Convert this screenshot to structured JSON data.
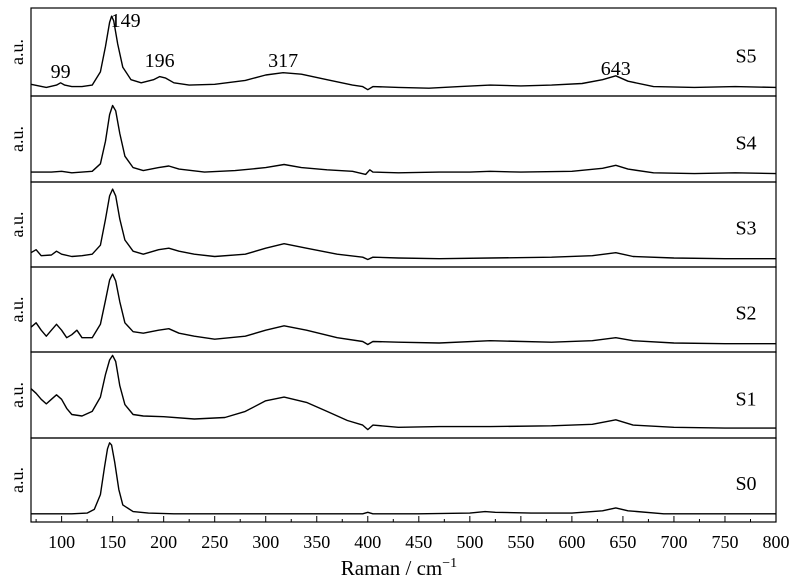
{
  "chart_data": {
    "type": "line",
    "layout": "stacked-panels",
    "xlabel": "Raman / cm",
    "xlabel_superscript": "−1",
    "ylabel": "a.u.",
    "xlim": [
      70,
      800
    ],
    "xticks": [
      100,
      150,
      200,
      250,
      300,
      350,
      400,
      450,
      500,
      550,
      600,
      650,
      700,
      750,
      800
    ],
    "grid": false,
    "line_color": "#000000",
    "peak_annotations": [
      {
        "label": "99",
        "x": 99
      },
      {
        "label": "149",
        "x": 149
      },
      {
        "label": "196",
        "x": 196
      },
      {
        "label": "317",
        "x": 317
      },
      {
        "label": "643",
        "x": 643
      }
    ],
    "series": [
      {
        "name": "S5",
        "x": [
          70,
          85,
          95,
          99,
          103,
          110,
          120,
          130,
          138,
          143,
          147,
          149,
          151,
          155,
          160,
          168,
          178,
          190,
          196,
          202,
          210,
          225,
          250,
          280,
          300,
          317,
          335,
          360,
          385,
          395,
          400,
          405,
          430,
          460,
          490,
          520,
          550,
          580,
          610,
          630,
          643,
          655,
          680,
          720,
          760,
          800
        ],
        "y": [
          0.06,
          0.02,
          0.05,
          0.08,
          0.05,
          0.03,
          0.03,
          0.05,
          0.22,
          0.55,
          0.86,
          0.94,
          0.88,
          0.58,
          0.28,
          0.12,
          0.08,
          0.12,
          0.16,
          0.14,
          0.08,
          0.05,
          0.06,
          0.11,
          0.18,
          0.21,
          0.19,
          0.12,
          0.05,
          0.03,
          -0.01,
          0.03,
          0.02,
          0.01,
          0.03,
          0.05,
          0.04,
          0.05,
          0.07,
          0.12,
          0.17,
          0.1,
          0.03,
          0.02,
          0.03,
          0.02
        ]
      },
      {
        "name": "S4",
        "x": [
          70,
          90,
          100,
          110,
          120,
          130,
          138,
          143,
          147,
          150,
          153,
          157,
          162,
          170,
          180,
          195,
          205,
          215,
          240,
          270,
          300,
          318,
          335,
          360,
          385,
          398,
          402,
          405,
          430,
          470,
          500,
          520,
          550,
          600,
          630,
          643,
          655,
          680,
          720,
          760,
          800
        ],
        "y": [
          0.04,
          0.04,
          0.05,
          0.03,
          0.04,
          0.05,
          0.15,
          0.45,
          0.8,
          0.92,
          0.85,
          0.55,
          0.25,
          0.1,
          0.06,
          0.1,
          0.12,
          0.08,
          0.04,
          0.06,
          0.1,
          0.14,
          0.1,
          0.07,
          0.05,
          0.01,
          0.07,
          0.04,
          0.03,
          0.04,
          0.04,
          0.05,
          0.04,
          0.05,
          0.09,
          0.13,
          0.08,
          0.03,
          0.02,
          0.03,
          0.02
        ]
      },
      {
        "name": "S3",
        "x": [
          70,
          75,
          80,
          90,
          95,
          100,
          110,
          120,
          130,
          138,
          143,
          147,
          150,
          153,
          157,
          162,
          170,
          180,
          195,
          205,
          215,
          230,
          250,
          280,
          300,
          318,
          340,
          370,
          395,
          400,
          405,
          430,
          470,
          520,
          580,
          620,
          643,
          660,
          700,
          750,
          800
        ],
        "y": [
          0.1,
          0.14,
          0.06,
          0.07,
          0.12,
          0.08,
          0.05,
          0.06,
          0.08,
          0.2,
          0.55,
          0.86,
          0.95,
          0.86,
          0.55,
          0.27,
          0.12,
          0.08,
          0.14,
          0.16,
          0.12,
          0.08,
          0.05,
          0.08,
          0.16,
          0.22,
          0.16,
          0.08,
          0.04,
          0.01,
          0.04,
          0.03,
          0.02,
          0.03,
          0.04,
          0.06,
          0.1,
          0.05,
          0.03,
          0.02,
          0.02
        ]
      },
      {
        "name": "S2",
        "x": [
          70,
          75,
          80,
          85,
          90,
          95,
          100,
          105,
          110,
          115,
          120,
          130,
          138,
          143,
          147,
          150,
          153,
          157,
          162,
          170,
          180,
          195,
          205,
          215,
          230,
          250,
          280,
          300,
          318,
          340,
          370,
          395,
          400,
          405,
          430,
          470,
          520,
          580,
          620,
          643,
          660,
          700,
          750,
          800
        ],
        "y": [
          0.24,
          0.3,
          0.2,
          0.12,
          0.2,
          0.28,
          0.2,
          0.1,
          0.14,
          0.2,
          0.1,
          0.1,
          0.28,
          0.6,
          0.87,
          0.95,
          0.86,
          0.58,
          0.3,
          0.18,
          0.16,
          0.2,
          0.22,
          0.16,
          0.12,
          0.08,
          0.12,
          0.2,
          0.26,
          0.2,
          0.1,
          0.05,
          0.01,
          0.05,
          0.04,
          0.03,
          0.06,
          0.04,
          0.06,
          0.1,
          0.06,
          0.03,
          0.02,
          0.02
        ]
      },
      {
        "name": "S1",
        "x": [
          70,
          75,
          80,
          85,
          90,
          95,
          100,
          105,
          110,
          120,
          130,
          138,
          143,
          147,
          150,
          153,
          157,
          162,
          170,
          180,
          200,
          230,
          260,
          280,
          300,
          318,
          340,
          360,
          380,
          395,
          400,
          405,
          430,
          470,
          520,
          580,
          620,
          643,
          660,
          700,
          750,
          800
        ],
        "y": [
          0.56,
          0.5,
          0.42,
          0.36,
          0.42,
          0.48,
          0.42,
          0.3,
          0.22,
          0.2,
          0.26,
          0.45,
          0.75,
          0.94,
          1.0,
          0.92,
          0.6,
          0.35,
          0.22,
          0.2,
          0.19,
          0.16,
          0.18,
          0.26,
          0.4,
          0.45,
          0.38,
          0.26,
          0.14,
          0.08,
          0.02,
          0.08,
          0.05,
          0.06,
          0.06,
          0.07,
          0.09,
          0.15,
          0.08,
          0.05,
          0.04,
          0.04
        ]
      },
      {
        "name": "S0",
        "x": [
          70,
          90,
          110,
          125,
          132,
          138,
          142,
          145,
          147,
          149,
          152,
          156,
          160,
          170,
          185,
          210,
          250,
          300,
          350,
          395,
          400,
          405,
          450,
          500,
          515,
          525,
          560,
          600,
          630,
          643,
          655,
          690,
          740,
          800
        ],
        "y": [
          0.02,
          0.02,
          0.02,
          0.03,
          0.08,
          0.28,
          0.65,
          0.9,
          0.98,
          0.95,
          0.72,
          0.35,
          0.14,
          0.05,
          0.03,
          0.02,
          0.02,
          0.02,
          0.02,
          0.02,
          0.04,
          0.02,
          0.02,
          0.03,
          0.05,
          0.04,
          0.03,
          0.03,
          0.06,
          0.1,
          0.06,
          0.02,
          0.02,
          0.02
        ]
      }
    ]
  }
}
